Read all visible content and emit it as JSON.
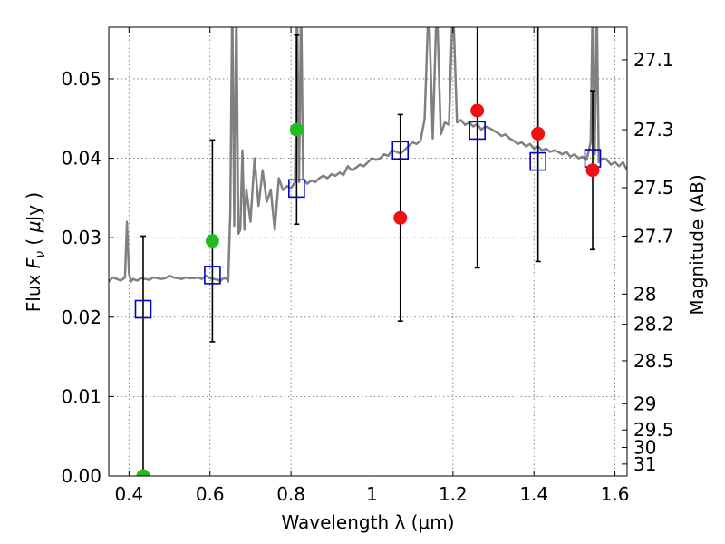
{
  "chart_data": {
    "type": "scatter",
    "xlabel": "Wavelength  λ (μm)",
    "ylabel": "Flux  F_ν  ( μJy )",
    "ylabel_right": "Magnitude (AB)",
    "xlim": [
      0.35,
      1.63
    ],
    "ylim": [
      0.0,
      0.0565
    ],
    "x_ticks": [
      0.4,
      0.6,
      0.8,
      1.0,
      1.2,
      1.4,
      1.6
    ],
    "x_tick_labels": [
      "0.4",
      "0.6",
      "0.8",
      "1",
      "1.2",
      "1.4",
      "1.6"
    ],
    "y_ticks": [
      0.0,
      0.01,
      0.02,
      0.03,
      0.04,
      0.05
    ],
    "y_tick_labels": [
      "0.00",
      "0.01",
      "0.02",
      "0.03",
      "0.04",
      "0.05"
    ],
    "right_ticks": [
      {
        "label": "27.1",
        "flux": 0.0524
      },
      {
        "label": "27.3",
        "flux": 0.0436
      },
      {
        "label": "27.5",
        "flux": 0.0363
      },
      {
        "label": "27.7",
        "flux": 0.0302
      },
      {
        "label": "28",
        "flux": 0.0229
      },
      {
        "label": "28.2",
        "flux": 0.0191
      },
      {
        "label": "28.5",
        "flux": 0.0145
      },
      {
        "label": "29",
        "flux": 0.0091
      },
      {
        "label": "29.5",
        "flux": 0.0058
      },
      {
        "label": "30",
        "flux": 0.0036
      },
      {
        "label": "31",
        "flux": 0.0015
      }
    ],
    "grid": true,
    "colors": {
      "spectrum": "#808080",
      "model_box": "#0000cc",
      "green_point": "#22bb22",
      "red_point": "#ee1111",
      "errorbar": "#000000"
    },
    "spectrum": {
      "x": [
        0.35,
        0.36,
        0.37,
        0.38,
        0.39,
        0.395,
        0.4,
        0.405,
        0.41,
        0.42,
        0.43,
        0.44,
        0.45,
        0.46,
        0.47,
        0.48,
        0.49,
        0.5,
        0.51,
        0.52,
        0.53,
        0.54,
        0.55,
        0.56,
        0.57,
        0.58,
        0.59,
        0.6,
        0.61,
        0.62,
        0.625,
        0.63,
        0.64,
        0.645,
        0.65,
        0.655,
        0.66,
        0.665,
        0.67,
        0.675,
        0.68,
        0.685,
        0.69,
        0.7,
        0.71,
        0.72,
        0.73,
        0.74,
        0.75,
        0.76,
        0.77,
        0.78,
        0.79,
        0.8,
        0.81,
        0.815,
        0.82,
        0.825,
        0.83,
        0.84,
        0.85,
        0.86,
        0.87,
        0.88,
        0.89,
        0.9,
        0.91,
        0.92,
        0.93,
        0.94,
        0.95,
        0.96,
        0.97,
        0.98,
        0.99,
        1.0,
        1.01,
        1.02,
        1.03,
        1.04,
        1.05,
        1.06,
        1.07,
        1.08,
        1.09,
        1.1,
        1.11,
        1.12,
        1.13,
        1.14,
        1.15,
        1.16,
        1.17,
        1.18,
        1.19,
        1.2,
        1.21,
        1.22,
        1.23,
        1.24,
        1.25,
        1.26,
        1.27,
        1.28,
        1.29,
        1.3,
        1.31,
        1.32,
        1.33,
        1.34,
        1.35,
        1.36,
        1.37,
        1.38,
        1.39,
        1.4,
        1.41,
        1.42,
        1.43,
        1.44,
        1.45,
        1.46,
        1.47,
        1.48,
        1.49,
        1.5,
        1.51,
        1.52,
        1.53,
        1.54,
        1.545,
        1.55,
        1.555,
        1.56,
        1.57,
        1.58,
        1.59,
        1.6,
        1.61,
        1.62,
        1.63
      ],
      "y": [
        0.0245,
        0.025,
        0.0248,
        0.0246,
        0.025,
        0.032,
        0.0255,
        0.0245,
        0.0248,
        0.0246,
        0.0249,
        0.0248,
        0.0247,
        0.025,
        0.0249,
        0.0248,
        0.0249,
        0.0252,
        0.025,
        0.0249,
        0.0248,
        0.025,
        0.0249,
        0.0249,
        0.025,
        0.0248,
        0.0252,
        0.0249,
        0.0248,
        0.0247,
        0.0245,
        0.0248,
        0.0249,
        0.0245,
        0.033,
        0.06,
        0.0315,
        0.06,
        0.0305,
        0.031,
        0.041,
        0.031,
        0.036,
        0.032,
        0.04,
        0.034,
        0.0385,
        0.0345,
        0.036,
        0.031,
        0.0375,
        0.036,
        0.0365,
        0.0362,
        0.037,
        0.06,
        0.037,
        0.06,
        0.0375,
        0.0368,
        0.0372,
        0.037,
        0.0375,
        0.0378,
        0.0375,
        0.038,
        0.0378,
        0.0382,
        0.0379,
        0.039,
        0.0385,
        0.0388,
        0.0392,
        0.039,
        0.0395,
        0.04,
        0.0398,
        0.04,
        0.0405,
        0.0403,
        0.041,
        0.0408,
        0.0406,
        0.041,
        0.0415,
        0.042,
        0.0418,
        0.0422,
        0.045,
        0.06,
        0.0425,
        0.06,
        0.043,
        0.0445,
        0.0442,
        0.06,
        0.0445,
        0.0448,
        0.0442,
        0.0445,
        0.044,
        0.0443,
        0.0436,
        0.044,
        0.0438,
        0.0435,
        0.0432,
        0.0428,
        0.043,
        0.0425,
        0.0422,
        0.0418,
        0.042,
        0.0415,
        0.0418,
        0.0412,
        0.0415,
        0.041,
        0.0412,
        0.0408,
        0.041,
        0.0408,
        0.0405,
        0.0408,
        0.0402,
        0.0405,
        0.04,
        0.0402,
        0.0398,
        0.042,
        0.06,
        0.0405,
        0.06,
        0.0395,
        0.04,
        0.0398,
        0.0392,
        0.0395,
        0.039,
        0.0395,
        0.0385
      ]
    },
    "observed_points": [
      {
        "x": 0.435,
        "y": 0.0,
        "err": 0.0302,
        "color": "green"
      },
      {
        "x": 0.606,
        "y": 0.0296,
        "err": 0.0127,
        "color": "green"
      },
      {
        "x": 0.814,
        "y": 0.0436,
        "err": 0.0119,
        "color": "green"
      },
      {
        "x": 1.07,
        "y": 0.0325,
        "err": 0.013,
        "color": "red"
      },
      {
        "x": 1.26,
        "y": 0.046,
        "err": 0.0198,
        "color": "red"
      },
      {
        "x": 1.41,
        "y": 0.0431,
        "err": 0.0161,
        "color": "red"
      },
      {
        "x": 1.545,
        "y": 0.0385,
        "err": 0.01,
        "color": "red"
      }
    ],
    "model_points": [
      {
        "x": 0.435,
        "y": 0.021
      },
      {
        "x": 0.606,
        "y": 0.0253
      },
      {
        "x": 0.814,
        "y": 0.0362
      },
      {
        "x": 1.07,
        "y": 0.041
      },
      {
        "x": 1.26,
        "y": 0.0435
      },
      {
        "x": 1.41,
        "y": 0.0396
      },
      {
        "x": 1.545,
        "y": 0.04
      }
    ]
  }
}
